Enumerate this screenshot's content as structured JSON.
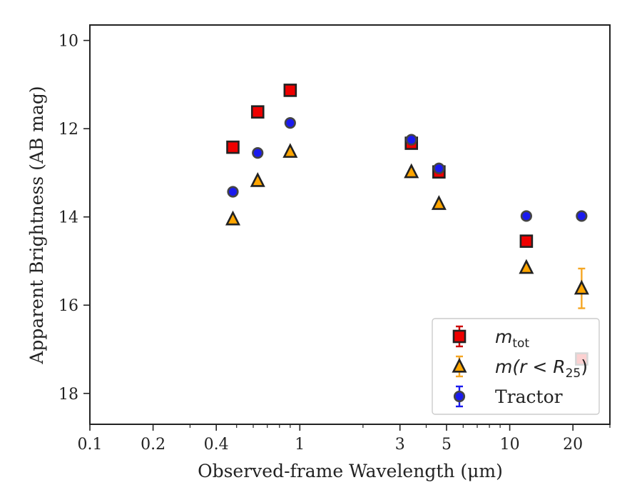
{
  "chart_data": {
    "type": "scatter",
    "xlabel": "Observed-frame Wavelength (μm)",
    "ylabel": "Apparent Brightness (AB mag)",
    "x_scale": "log",
    "xlim": [
      0.1,
      30
    ],
    "ylim": [
      18.7,
      9.65
    ],
    "y_inverted": true,
    "grid": false,
    "legend_position": "lower-right",
    "x_tick_labels": [
      "0.1",
      "0.2",
      "0.4",
      "1",
      "3",
      "5",
      "10",
      "20"
    ],
    "x_ticks": [
      0.1,
      0.2,
      0.4,
      1,
      3,
      5,
      10,
      20
    ],
    "y_ticks": [
      10,
      12,
      14,
      16,
      18
    ],
    "y_tick_labels": [
      "10",
      "12",
      "14",
      "16",
      "18"
    ],
    "series": [
      {
        "key": "mtot",
        "name": "m_tot",
        "legend_text": "m",
        "legend_sub": "tot",
        "marker": "square",
        "face_color": "#ee0000",
        "edge_color": "#222222",
        "errorbar_color": "#cc0000",
        "points": [
          {
            "x": 0.48,
            "y": 12.42
          },
          {
            "x": 0.63,
            "y": 11.62
          },
          {
            "x": 0.9,
            "y": 11.13
          },
          {
            "x": 3.4,
            "y": 12.33
          },
          {
            "x": 4.6,
            "y": 12.98
          },
          {
            "x": 12.0,
            "y": 14.55
          },
          {
            "x": 22.0,
            "y": 17.22
          }
        ]
      },
      {
        "key": "mr25",
        "name": "m(r < R25)",
        "legend_text": "m(r < R",
        "legend_sub": "25",
        "legend_close": ")",
        "marker": "triangle",
        "face_color": "#ffa500",
        "edge_color": "#222222",
        "errorbar_color": "#f5a623",
        "points": [
          {
            "x": 0.48,
            "y": 14.05
          },
          {
            "x": 0.63,
            "y": 13.18
          },
          {
            "x": 0.9,
            "y": 12.52
          },
          {
            "x": 3.4,
            "y": 12.98
          },
          {
            "x": 4.6,
            "y": 13.7
          },
          {
            "x": 12.0,
            "y": 15.15
          },
          {
            "x": 22.0,
            "y": 15.62,
            "yerr": 0.45
          }
        ]
      },
      {
        "key": "tractor",
        "name": "Tractor",
        "legend_text": "Tractor",
        "marker": "circle",
        "face_color": "#1a1aee",
        "edge_color": "#444444",
        "errorbar_color": "#1a1aee",
        "points": [
          {
            "x": 0.48,
            "y": 13.43
          },
          {
            "x": 0.63,
            "y": 12.55
          },
          {
            "x": 0.9,
            "y": 11.87
          },
          {
            "x": 3.4,
            "y": 12.25
          },
          {
            "x": 4.6,
            "y": 12.9
          },
          {
            "x": 12.0,
            "y": 13.98
          },
          {
            "x": 22.0,
            "y": 13.98
          }
        ]
      }
    ]
  }
}
